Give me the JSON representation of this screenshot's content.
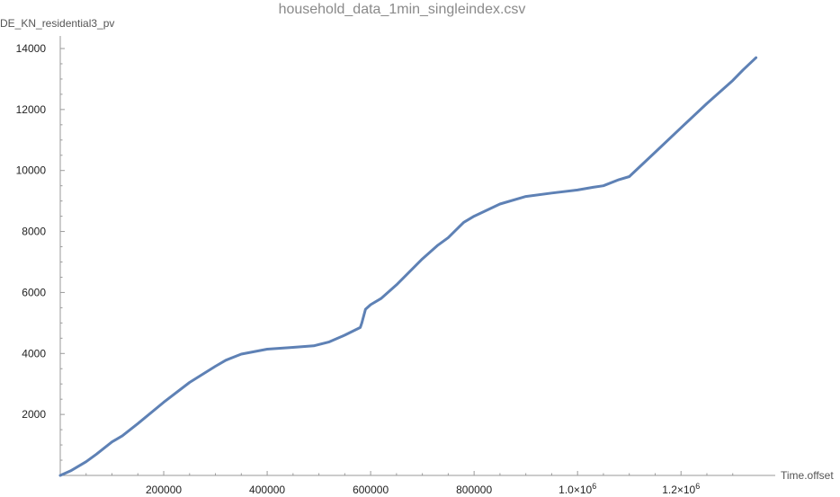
{
  "chart_data": {
    "type": "line",
    "title": "household_data_1min_singleindex.csv",
    "xlabel": "Time.offset",
    "ylabel": "DE_KN_residential3_pv",
    "xlim": [
      0,
      1350000
    ],
    "ylim": [
      0,
      14000
    ],
    "grid": false,
    "series_color": "#5e81b5",
    "x_ticks": [
      {
        "value": 200000,
        "label": "200000"
      },
      {
        "value": 400000,
        "label": "400000"
      },
      {
        "value": 600000,
        "label": "600000"
      },
      {
        "value": 800000,
        "label": "800000"
      },
      {
        "value": 1000000,
        "label": "1.0×10",
        "exp": "6"
      },
      {
        "value": 1200000,
        "label": "1.2×10",
        "exp": "6"
      }
    ],
    "y_ticks": [
      {
        "value": 2000,
        "label": "2000"
      },
      {
        "value": 4000,
        "label": "4000"
      },
      {
        "value": 6000,
        "label": "6000"
      },
      {
        "value": 8000,
        "label": "8000"
      },
      {
        "value": 10000,
        "label": "10000"
      },
      {
        "value": 12000,
        "label": "12000"
      },
      {
        "value": 14000,
        "label": "14000"
      }
    ],
    "series": [
      {
        "x": [
          0,
          20000,
          50000,
          70000,
          100000,
          120000,
          150000,
          200000,
          250000,
          300000,
          320000,
          350000,
          400000,
          450000,
          490000,
          520000,
          550000,
          580000,
          583000,
          590000,
          600000,
          620000,
          650000,
          700000,
          730000,
          750000,
          780000,
          800000,
          850000,
          900000,
          950000,
          1000000,
          1030000,
          1050000,
          1080000,
          1100000,
          1150000,
          1200000,
          1250000,
          1300000,
          1320000,
          1345000
        ],
        "y": [
          0,
          150,
          450,
          700,
          1100,
          1300,
          1700,
          2400,
          3050,
          3580,
          3780,
          3980,
          4140,
          4200,
          4250,
          4380,
          4600,
          4850,
          5000,
          5450,
          5600,
          5800,
          6250,
          7100,
          7550,
          7800,
          8300,
          8500,
          8900,
          9150,
          9260,
          9360,
          9450,
          9500,
          9700,
          9800,
          10600,
          11400,
          12200,
          12950,
          13300,
          13700
        ]
      }
    ]
  }
}
